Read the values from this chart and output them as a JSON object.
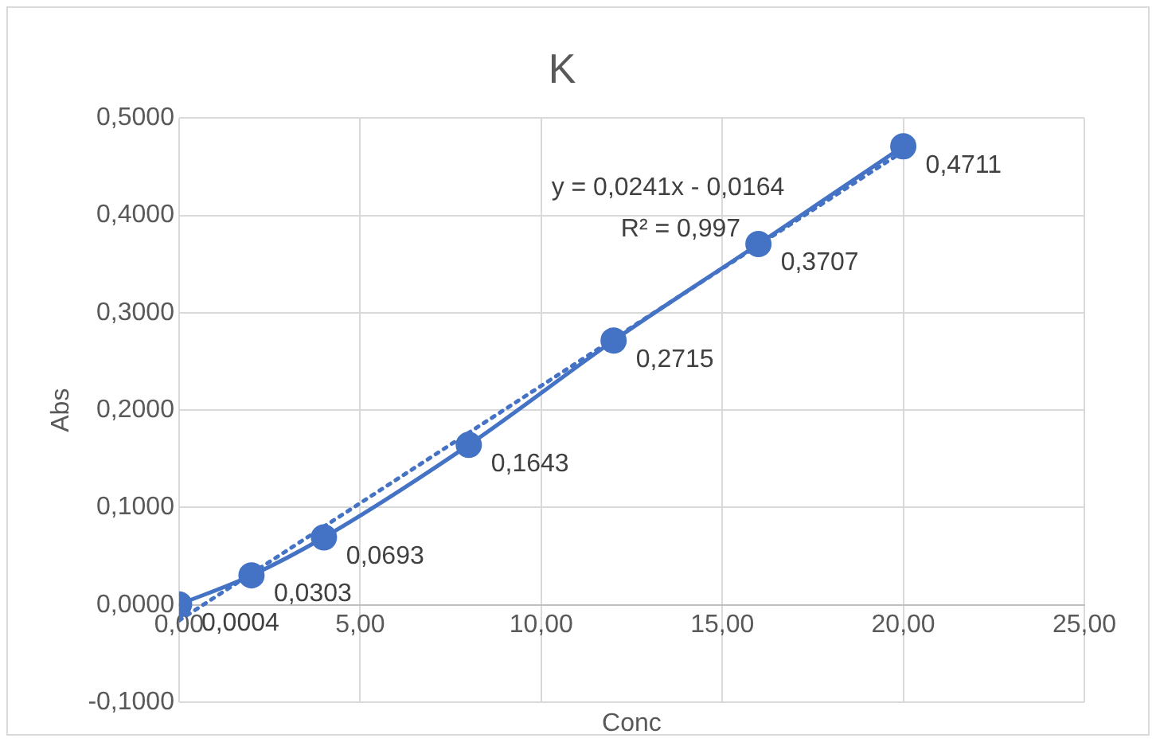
{
  "chart_data": {
    "type": "scatter",
    "title": "K",
    "xlabel": "Conc",
    "ylabel": "Abs",
    "xlim": [
      0,
      25
    ],
    "xticks": [
      {
        "value": 0,
        "label": "0,00"
      },
      {
        "value": 5,
        "label": "5,00"
      },
      {
        "value": 10,
        "label": "10,00"
      },
      {
        "value": 15,
        "label": "15,00"
      },
      {
        "value": 20,
        "label": "20,00"
      },
      {
        "value": 25,
        "label": "25,00"
      }
    ],
    "ylim": [
      -0.1,
      0.5
    ],
    "yticks": [
      {
        "value": -0.1,
        "label": "-0,1000"
      },
      {
        "value": 0,
        "label": "0,0000"
      },
      {
        "value": 0.1,
        "label": "0,1000"
      },
      {
        "value": 0.2,
        "label": "0,2000"
      },
      {
        "value": 0.3,
        "label": "0,3000"
      },
      {
        "value": 0.4,
        "label": "0,4000"
      },
      {
        "value": 0.5,
        "label": "0,5000"
      }
    ],
    "grid": true,
    "legend": false,
    "series": [
      {
        "type": "line",
        "color": "#4472c4",
        "marker": "circle",
        "line_style": "solid",
        "x": [
          0,
          2,
          4,
          8,
          12,
          16,
          20
        ],
        "values": [
          0.0004,
          0.0303,
          0.0693,
          0.1643,
          0.2715,
          0.3707,
          0.4711
        ],
        "value_labels": [
          "0,0004",
          "0,0303",
          "0,0693",
          "0,1643",
          "0,2715",
          "0,3707",
          "0,4711"
        ]
      },
      {
        "type": "line",
        "color": "#4472c4",
        "marker": "none",
        "line_style": "dotted",
        "x": [
          0,
          20
        ],
        "values": [
          -0.016,
          0.466
        ]
      }
    ],
    "annotations": [
      "y = 0,0241x - 0,0164",
      "R² = 0,997"
    ]
  }
}
